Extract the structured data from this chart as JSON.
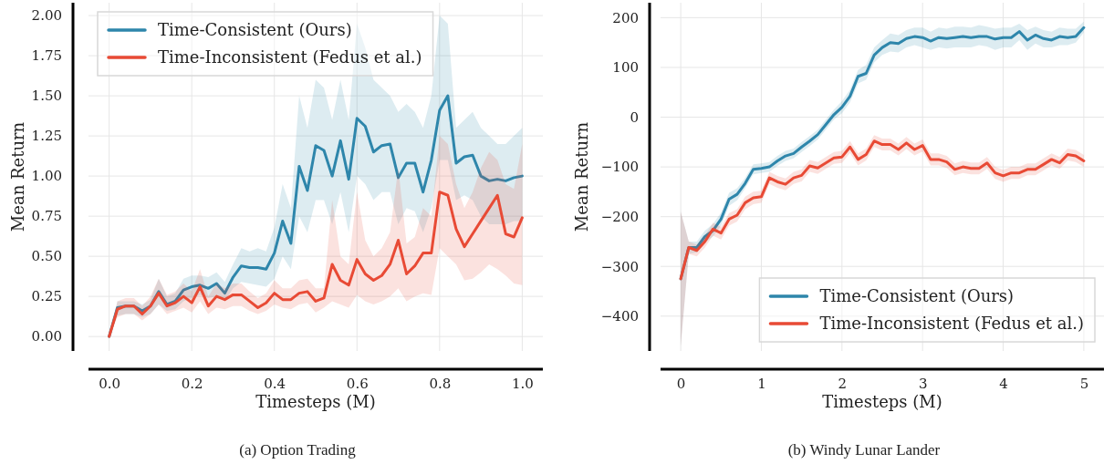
{
  "chart_data": [
    {
      "type": "line",
      "title": "(a) Option Trading",
      "xlabel": "Timesteps (M)",
      "ylabel": "Mean Return",
      "grid": true,
      "legend": "top left",
      "xlim": [
        -0.05,
        1.05
      ],
      "ylim": [
        -0.09,
        2.08
      ],
      "xticks": [
        {
          "value": 0,
          "label": "0.0"
        },
        {
          "value": 0.2,
          "label": "0.2"
        },
        {
          "value": 0.4,
          "label": "0.4"
        },
        {
          "value": 0.6,
          "label": "0.6"
        },
        {
          "value": 0.8,
          "label": "0.8"
        },
        {
          "value": 1,
          "label": "1.0"
        }
      ],
      "yticks": [
        {
          "value": 0,
          "label": "0.00"
        },
        {
          "value": 0.25,
          "label": "0.25"
        },
        {
          "value": 0.5,
          "label": "0.50"
        },
        {
          "value": 0.75,
          "label": "0.75"
        },
        {
          "value": 1,
          "label": "1.00"
        },
        {
          "value": 1.25,
          "label": "1.25"
        },
        {
          "value": 1.5,
          "label": "1.50"
        },
        {
          "value": 1.75,
          "label": "1.75"
        },
        {
          "value": 2,
          "label": "2.00"
        }
      ],
      "x": [
        0,
        0.02,
        0.04,
        0.06,
        0.08,
        0.1,
        0.12,
        0.14,
        0.16,
        0.18,
        0.2,
        0.22,
        0.24,
        0.26,
        0.28,
        0.3,
        0.32,
        0.34,
        0.36,
        0.38,
        0.4,
        0.42,
        0.44,
        0.46,
        0.48,
        0.5,
        0.52,
        0.54,
        0.56,
        0.58,
        0.6,
        0.62,
        0.64,
        0.66,
        0.68,
        0.7,
        0.72,
        0.74,
        0.76,
        0.78,
        0.8,
        0.82,
        0.84,
        0.86,
        0.88,
        0.9,
        0.92,
        0.94,
        0.96,
        0.98,
        1.0
      ],
      "series": [
        {
          "name": "Time-Consistent (Ours)",
          "color": "#2e86ab",
          "values": [
            0,
            0.18,
            0.19,
            0.19,
            0.16,
            0.19,
            0.28,
            0.2,
            0.22,
            0.29,
            0.31,
            0.32,
            0.3,
            0.33,
            0.27,
            0.37,
            0.44,
            0.43,
            0.43,
            0.42,
            0.52,
            0.72,
            0.58,
            1.06,
            0.91,
            1.19,
            1.16,
            1.0,
            1.22,
            0.98,
            1.36,
            1.31,
            1.15,
            1.19,
            1.2,
            0.99,
            1.08,
            1.08,
            0.9,
            1.1,
            1.41,
            1.5,
            1.08,
            1.12,
            1.13,
            1.0,
            0.97,
            0.98,
            0.97,
            0.99,
            1.0
          ],
          "lower": [
            0,
            0.13,
            0.14,
            0.14,
            0.12,
            0.14,
            0.2,
            0.16,
            0.17,
            0.22,
            0.24,
            0.26,
            0.24,
            0.25,
            0.22,
            0.3,
            0.34,
            0.33,
            0.32,
            0.31,
            0.36,
            0.5,
            0.42,
            0.75,
            0.65,
            0.85,
            0.85,
            0.7,
            0.9,
            0.65,
            1.0,
            0.95,
            0.85,
            0.9,
            0.9,
            0.7,
            0.8,
            0.78,
            0.65,
            0.8,
            1.1,
            1.1,
            0.85,
            0.88,
            0.85,
            0.75,
            0.7,
            0.7,
            0.7,
            0.72,
            0.72
          ],
          "upper": [
            0,
            0.22,
            0.22,
            0.22,
            0.2,
            0.23,
            0.36,
            0.25,
            0.27,
            0.36,
            0.38,
            0.38,
            0.37,
            0.4,
            0.34,
            0.45,
            0.55,
            0.53,
            0.55,
            0.53,
            0.68,
            0.95,
            0.8,
            1.5,
            1.3,
            1.6,
            1.55,
            1.35,
            1.6,
            1.35,
            1.95,
            1.8,
            1.6,
            1.55,
            1.5,
            1.4,
            1.45,
            1.4,
            1.3,
            1.5,
            2.0,
            1.95,
            1.3,
            1.35,
            1.4,
            1.3,
            1.25,
            1.2,
            1.2,
            1.25,
            1.3
          ]
        },
        {
          "name": "Time-Inconsistent (Fedus et al.)",
          "color": "#e84a35",
          "values": [
            0,
            0.17,
            0.19,
            0.19,
            0.14,
            0.19,
            0.27,
            0.19,
            0.21,
            0.25,
            0.21,
            0.31,
            0.19,
            0.25,
            0.23,
            0.26,
            0.26,
            0.22,
            0.18,
            0.21,
            0.27,
            0.23,
            0.23,
            0.27,
            0.28,
            0.22,
            0.24,
            0.45,
            0.35,
            0.32,
            0.48,
            0.39,
            0.35,
            0.38,
            0.45,
            0.6,
            0.39,
            0.44,
            0.52,
            0.52,
            0.9,
            0.88,
            0.67,
            0.56,
            0.64,
            0.72,
            0.8,
            0.88,
            0.64,
            0.62,
            0.74
          ],
          "lower": [
            0,
            0.12,
            0.14,
            0.14,
            0.1,
            0.14,
            0.2,
            0.14,
            0.16,
            0.18,
            0.15,
            0.22,
            0.14,
            0.18,
            0.17,
            0.19,
            0.19,
            0.16,
            0.14,
            0.16,
            0.2,
            0.18,
            0.17,
            0.2,
            0.21,
            0.15,
            0.18,
            0.22,
            0.2,
            0.18,
            0.26,
            0.22,
            0.2,
            0.22,
            0.25,
            0.3,
            0.22,
            0.25,
            0.27,
            0.26,
            0.55,
            0.5,
            0.45,
            0.35,
            0.36,
            0.4,
            0.45,
            0.42,
            0.38,
            0.33,
            0.32
          ],
          "upper": [
            0,
            0.22,
            0.24,
            0.24,
            0.19,
            0.25,
            0.36,
            0.26,
            0.28,
            0.33,
            0.28,
            0.42,
            0.25,
            0.33,
            0.3,
            0.33,
            0.33,
            0.28,
            0.24,
            0.27,
            0.35,
            0.3,
            0.3,
            0.35,
            0.36,
            0.3,
            0.3,
            0.85,
            0.5,
            0.45,
            0.9,
            0.6,
            0.5,
            0.55,
            0.65,
            1.05,
            0.58,
            0.62,
            0.8,
            0.75,
            1.25,
            1.2,
            0.95,
            0.8,
            0.9,
            1.05,
            1.15,
            1.1,
            0.95,
            0.92,
            1.2
          ]
        }
      ]
    },
    {
      "type": "line",
      "title": "(b) Windy Lunar Lander",
      "xlabel": "Timesteps (M)",
      "ylabel": "Mean Return",
      "grid": true,
      "legend": "bottom right",
      "xlim": [
        -0.25,
        5.25
      ],
      "ylim": [
        -470,
        230
      ],
      "xticks": [
        0,
        1,
        2,
        3,
        4,
        5
      ],
      "yticks": [
        {
          "value": -400,
          "label": "−400"
        },
        {
          "value": -300,
          "label": "−300"
        },
        {
          "value": -200,
          "label": "−200"
        },
        {
          "value": -100,
          "label": "−100"
        },
        0,
        100,
        200
      ],
      "x": [
        0,
        0.1,
        0.2,
        0.3,
        0.4,
        0.5,
        0.6,
        0.7,
        0.8,
        0.9,
        1.0,
        1.1,
        1.2,
        1.3,
        1.4,
        1.5,
        1.6,
        1.7,
        1.8,
        1.9,
        2.0,
        2.1,
        2.2,
        2.3,
        2.4,
        2.5,
        2.6,
        2.7,
        2.8,
        2.9,
        3.0,
        3.1,
        3.2,
        3.3,
        3.4,
        3.5,
        3.6,
        3.7,
        3.8,
        3.9,
        4.0,
        4.1,
        4.2,
        4.3,
        4.4,
        4.5,
        4.6,
        4.7,
        4.8,
        4.9,
        5.0
      ],
      "series": [
        {
          "name": "Time-Consistent (Ours)",
          "color": "#2e86ab",
          "values": [
            -325,
            -262,
            -262,
            -240,
            -228,
            -205,
            -165,
            -155,
            -133,
            -105,
            -103,
            -100,
            -88,
            -78,
            -73,
            -60,
            -48,
            -35,
            -15,
            5,
            20,
            42,
            82,
            88,
            125,
            140,
            150,
            148,
            158,
            162,
            160,
            153,
            160,
            158,
            160,
            162,
            160,
            162,
            162,
            157,
            160,
            160,
            172,
            155,
            165,
            158,
            155,
            162,
            160,
            162,
            180
          ],
          "lower": [
            -460,
            -275,
            -272,
            -252,
            -240,
            -218,
            -178,
            -167,
            -143,
            -115,
            -112,
            -110,
            -98,
            -88,
            -83,
            -70,
            -58,
            -45,
            -25,
            -5,
            8,
            30,
            68,
            75,
            110,
            125,
            132,
            130,
            140,
            145,
            140,
            135,
            140,
            138,
            140,
            140,
            140,
            145,
            142,
            135,
            140,
            140,
            155,
            135,
            148,
            140,
            140,
            145,
            145,
            150,
            170
          ],
          "upper": [
            -190,
            -250,
            -250,
            -228,
            -215,
            -192,
            -152,
            -143,
            -122,
            -95,
            -93,
            -90,
            -78,
            -68,
            -63,
            -50,
            -38,
            -25,
            -5,
            15,
            32,
            55,
            95,
            105,
            140,
            155,
            168,
            165,
            175,
            180,
            180,
            172,
            180,
            178,
            182,
            182,
            180,
            185,
            182,
            178,
            180,
            180,
            188,
            175,
            182,
            175,
            172,
            180,
            178,
            178,
            192
          ]
        },
        {
          "name": "Time-Inconsistent (Fedus et al.)",
          "color": "#e84a35",
          "values": [
            -325,
            -262,
            -268,
            -250,
            -225,
            -233,
            -205,
            -197,
            -172,
            -162,
            -160,
            -122,
            -130,
            -135,
            -122,
            -117,
            -98,
            -102,
            -92,
            -82,
            -80,
            -60,
            -85,
            -75,
            -48,
            -55,
            -55,
            -65,
            -52,
            -65,
            -57,
            -85,
            -85,
            -90,
            -105,
            -100,
            -103,
            -103,
            -92,
            -112,
            -118,
            -112,
            -112,
            -105,
            -105,
            -95,
            -85,
            -92,
            -75,
            -78,
            -88
          ],
          "lower": [
            -460,
            -275,
            -280,
            -262,
            -238,
            -246,
            -218,
            -210,
            -185,
            -175,
            -172,
            -134,
            -142,
            -147,
            -134,
            -129,
            -110,
            -114,
            -104,
            -94,
            -92,
            -72,
            -97,
            -87,
            -60,
            -67,
            -67,
            -77,
            -64,
            -77,
            -69,
            -97,
            -97,
            -102,
            -117,
            -112,
            -115,
            -115,
            -104,
            -124,
            -130,
            -124,
            -124,
            -117,
            -117,
            -107,
            -97,
            -104,
            -87,
            -90,
            -100
          ],
          "upper": [
            -190,
            -250,
            -256,
            -238,
            -212,
            -221,
            -193,
            -185,
            -160,
            -150,
            -148,
            -110,
            -118,
            -123,
            -110,
            -105,
            -86,
            -90,
            -80,
            -70,
            -68,
            -48,
            -73,
            -63,
            -36,
            -43,
            -43,
            -53,
            -40,
            -53,
            -45,
            -73,
            -73,
            -78,
            -93,
            -88,
            -91,
            -91,
            -80,
            -100,
            -106,
            -100,
            -100,
            -93,
            -93,
            -83,
            -73,
            -80,
            -63,
            -66,
            -76
          ]
        }
      ]
    }
  ]
}
